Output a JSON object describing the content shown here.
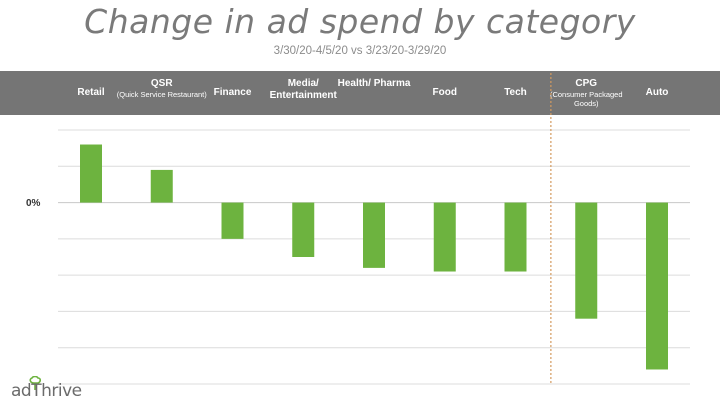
{
  "title": "Change in ad spend by category",
  "subtitle": "3/30/20-4/5/20 vs 3/23/20-3/29/20",
  "zero_label": "0%",
  "brand": {
    "logo_text": "adThrive"
  },
  "colors": {
    "bar": "#6db33f",
    "header_band": "#757575",
    "divider": "#d49a5e",
    "gridline": "#dcdcdc"
  },
  "chart_data": {
    "type": "bar",
    "title": "Change in ad spend by category",
    "subtitle": "3/30/20-4/5/20 vs 3/23/20-3/29/20",
    "categories": [
      {
        "name": "Retail",
        "detail": ""
      },
      {
        "name": "QSR",
        "detail": "(Quick Service Restaurant)"
      },
      {
        "name": "Finance",
        "detail": ""
      },
      {
        "name": "Media/ Entertainment",
        "detail": ""
      },
      {
        "name": "Health/ Pharma",
        "detail": ""
      },
      {
        "name": "Food",
        "detail": ""
      },
      {
        "name": "Tech",
        "detail": ""
      },
      {
        "name": "CPG",
        "detail": "(Consumer Packaged Goods)"
      },
      {
        "name": "Auto",
        "detail": ""
      }
    ],
    "values": [
      16,
      9,
      -10,
      -15,
      -18,
      -19,
      -19,
      -32,
      -46
    ],
    "ylim": [
      -50,
      20
    ],
    "gridlines": [
      20,
      10,
      0,
      -10,
      -20,
      -30,
      -40,
      -50
    ],
    "y_tick_labels": [
      "0%"
    ],
    "divider_after_index": 6,
    "grid": true,
    "legend": "none"
  }
}
